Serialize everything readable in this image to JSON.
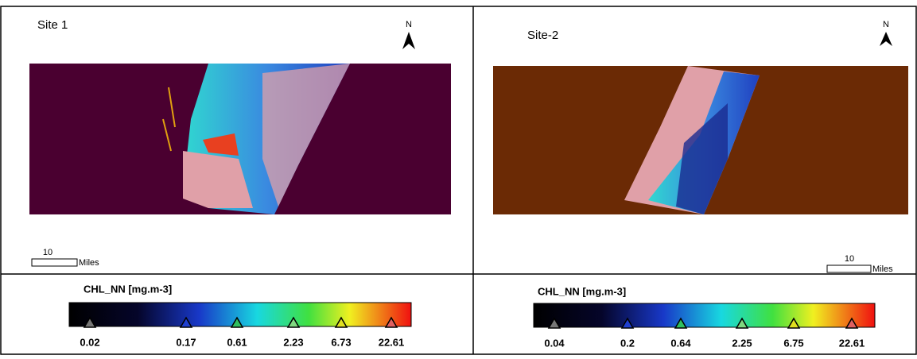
{
  "panels": [
    {
      "title": "Site 1",
      "north": "N",
      "scale_label": "10",
      "scale_unit": "Miles",
      "legend_title": "CHL_NN [mg.m-3]",
      "legend_ticks": [
        0.02,
        0.17,
        0.61,
        2.23,
        6.73,
        22.61
      ]
    },
    {
      "title": "Site-2",
      "north": "N",
      "scale_label": "10",
      "scale_unit": "Miles",
      "legend_title": "CHL_NN [mg.m-3]",
      "legend_ticks": [
        0.04,
        0.2,
        0.64,
        2.25,
        6.75,
        22.61
      ]
    }
  ]
}
